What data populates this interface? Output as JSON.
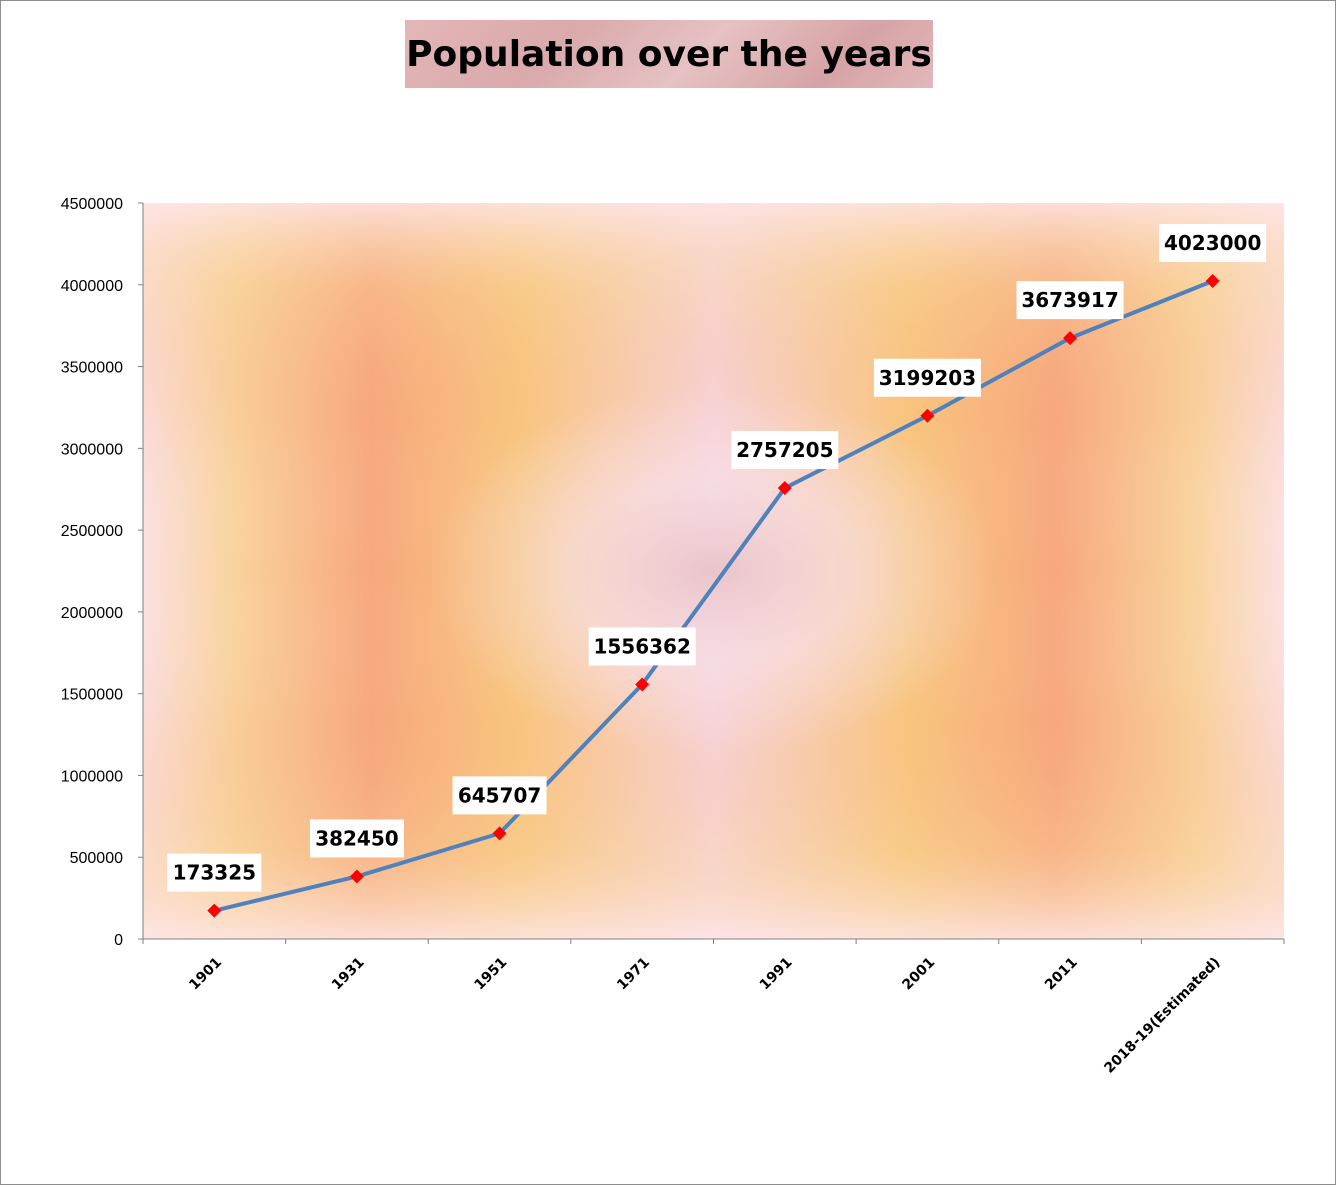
{
  "chart_data": {
    "type": "line",
    "title": "Population over the years",
    "categories": [
      "1901",
      "1931",
      "1951",
      "1971",
      "1991",
      "2001",
      "2011",
      "2018-19(Estimated)"
    ],
    "values": [
      173325,
      382450,
      645707,
      1556362,
      2757205,
      3199203,
      3673917,
      4023000
    ],
    "ylim": [
      0,
      4500000
    ],
    "yticks": [
      0,
      500000,
      1000000,
      1500000,
      2000000,
      2500000,
      3000000,
      3500000,
      4000000,
      4500000
    ],
    "ytick_labels": [
      "0",
      "500000",
      "1000000",
      "1500000",
      "2000000",
      "2500000",
      "3000000",
      "3500000",
      "4000000",
      "4500000"
    ],
    "xlabel": "",
    "ylabel": "",
    "grid": false,
    "legend": "none",
    "data_labels": true,
    "colors": {
      "line": "#4f81bd",
      "marker": "#ff0000",
      "label_background": "#ffffff"
    }
  }
}
